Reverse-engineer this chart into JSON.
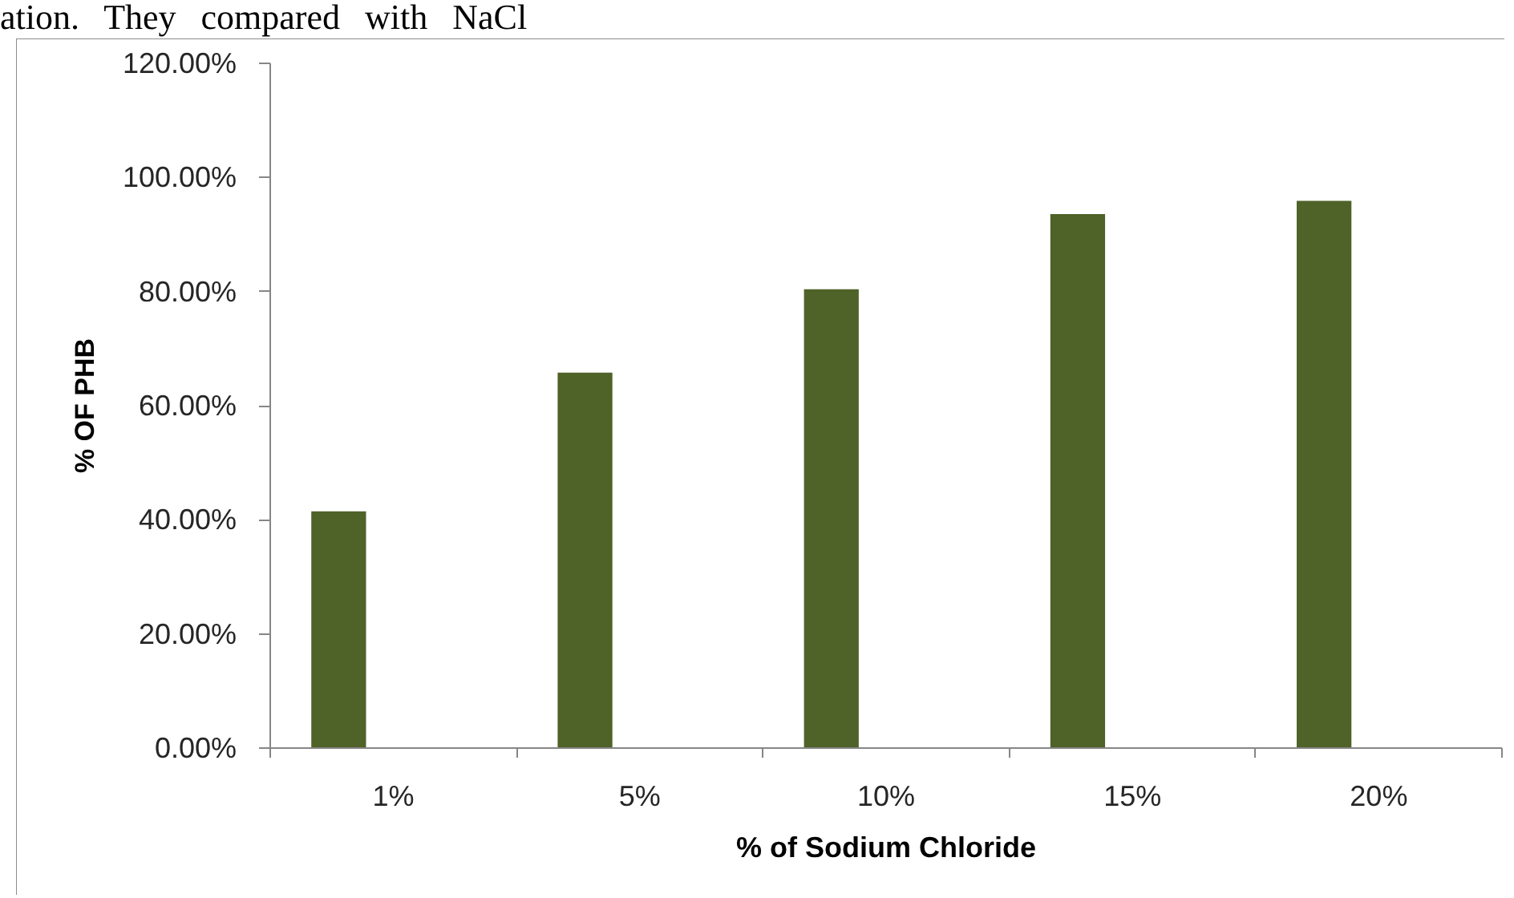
{
  "chart_data": {
    "type": "bar",
    "annotations": [
      "ation. They compared with NaCl"
    ],
    "xlabel": "% of Sodium Chloride",
    "ylabel": "% OF PHB",
    "categories": [
      "1%",
      "5%",
      "10%",
      "15%",
      "20%"
    ],
    "series": [
      {
        "color": "#4f6228",
        "values": [
          41.5,
          65.8,
          80.4,
          93.6,
          95.9
        ]
      },
      {
        "values": [
          null,
          null,
          null,
          null,
          null
        ]
      },
      {
        "values": [
          null,
          null,
          null,
          null,
          null
        ]
      }
    ],
    "ylim": [
      0,
      120
    ],
    "yticks": [
      {
        "value": 0,
        "label": "0.00%"
      },
      {
        "value": 20,
        "label": "20.00%"
      },
      {
        "value": 40,
        "label": "40.00%"
      },
      {
        "value": 60,
        "label": "60.00%"
      },
      {
        "value": 80,
        "label": "80.00%"
      },
      {
        "value": 100,
        "label": "100.00%"
      },
      {
        "value": 120,
        "label": "120.00%"
      }
    ],
    "grid": false
  }
}
